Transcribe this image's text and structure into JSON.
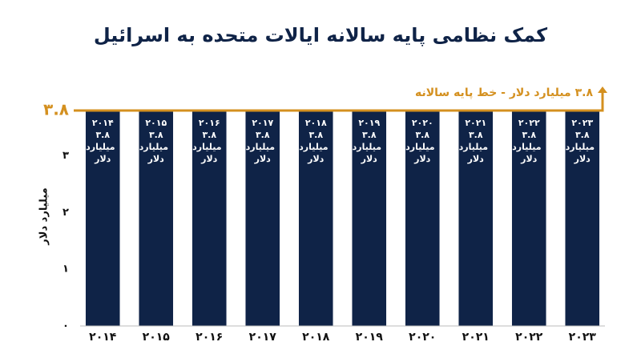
{
  "chart_data": {
    "type": "bar",
    "title": "کمک نظامی پایه سالانه ایالات متحده به اسرائیل",
    "y_label": "میلیارد دلار",
    "categories": [
      "۲۰۱۴",
      "۲۰۱۵",
      "۲۰۱۶",
      "۲۰۱۷",
      "۲۰۱۸",
      "۲۰۱۹",
      "۲۰۲۰",
      "۲۰۲۱",
      "۲۰۲۲",
      "۲۰۲۳"
    ],
    "values": [
      3.8,
      3.8,
      3.8,
      3.8,
      3.8,
      3.8,
      3.8,
      3.8,
      3.8,
      3.8
    ],
    "value_labels": [
      "۳.۸ میلیارد دلار",
      "۳.۸ میلیارد دلار",
      "۳.۸ میلیارد دلار",
      "۳.۸ میلیارد دلار",
      "۳.۸ میلیارد دلار",
      "۳.۸ میلیارد دلار",
      "۳.۸ میلیارد دلار",
      "۳.۸ میلیارد دلار",
      "۳.۸ میلیارد دلار",
      "۳.۸ میلیارد دلار"
    ],
    "color": "#0f2347",
    "ylim": [
      0,
      3.8
    ],
    "yticks": [
      {
        "value": 0,
        "label": "۰"
      },
      {
        "value": 1,
        "label": "۱"
      },
      {
        "value": 2,
        "label": "۲"
      },
      {
        "value": 3,
        "label": "۳"
      }
    ],
    "reference_line": {
      "value": 3.8,
      "label": "۳.۸",
      "text": "۳.۸ میلیارد دلار - خط پایه سالانه",
      "color": "#d4901f"
    }
  }
}
